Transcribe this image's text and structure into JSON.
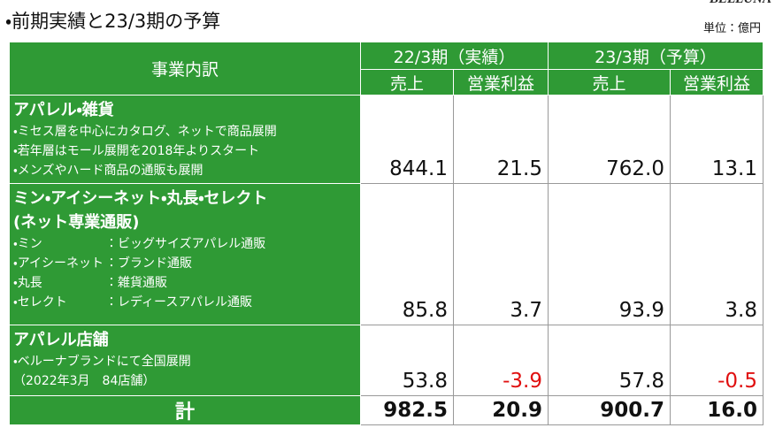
{
  "header": {
    "title": "・前期実績と23/3期の予算",
    "logo": "BELLUNA",
    "unit": "単位：億円"
  },
  "table": {
    "column_header": "事業内訳",
    "periods": [
      "22/3期（実績）",
      "23/3期（予算）"
    ],
    "metrics": [
      "売上",
      "営業利益",
      "売上",
      "営業利益"
    ],
    "rows": [
      {
        "title": [
          "アパレル・雑貨"
        ],
        "bullets": [
          [
            "・ミセス層を中心にカタログ、ネットで商品展開"
          ],
          [
            "・若年層はモール展開を2018年よりスタート"
          ],
          [
            "・メンズやハード商品の通販も展開"
          ]
        ],
        "values": [
          "844.1",
          "21.5",
          "762.0",
          "13.1"
        ]
      },
      {
        "title": [
          "ミン・アイシーネット・丸長・セレクト",
          "(ネット専業通販)"
        ],
        "bullets": [
          [
            "・ミン",
            "：ビッグサイズアパレル通販"
          ],
          [
            "・アイシーネット",
            "：ブランド通販"
          ],
          [
            "・丸長",
            "：雑貨通販"
          ],
          [
            "・セレクト",
            "：レディースアパレル通販"
          ]
        ],
        "values": [
          "85.8",
          "3.7",
          "93.9",
          "3.8"
        ]
      },
      {
        "title": [
          "アパレル店舗"
        ],
        "bullets": [
          [
            "・ベルーナブランドにて全国展開"
          ],
          [
            "（2022年3月　84店舗）"
          ]
        ],
        "values": [
          "53.8",
          "-3.9",
          "57.8",
          "-0.5"
        ]
      }
    ],
    "total": {
      "label": "計",
      "values": [
        "982.5",
        "20.9",
        "900.7",
        "16.0"
      ]
    }
  }
}
